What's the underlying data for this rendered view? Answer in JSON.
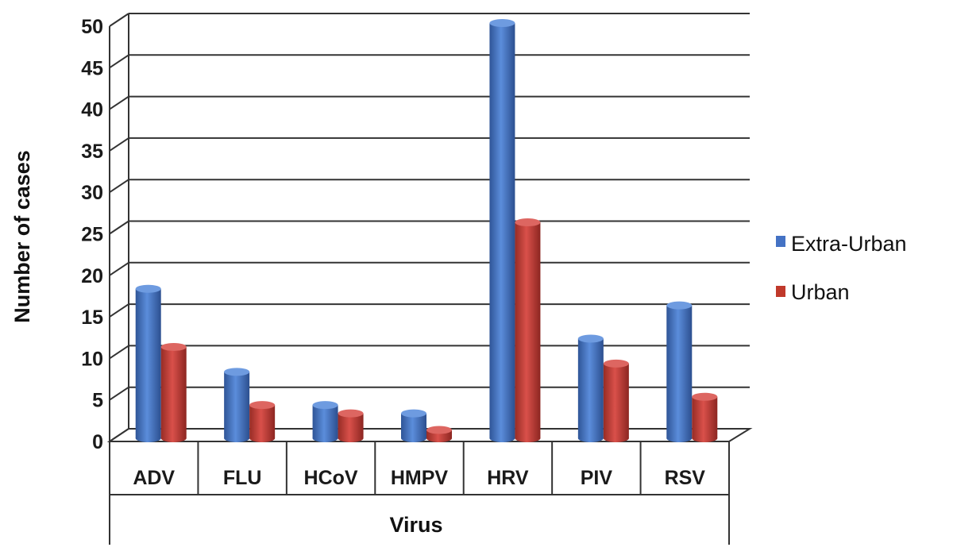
{
  "chart_data": {
    "type": "bar",
    "categories": [
      "ADV",
      "FLU",
      "HCoV",
      "HMPV",
      "HRV",
      "PIV",
      "RSV"
    ],
    "series": [
      {
        "name": "Extra-Urban",
        "values": [
          18,
          8,
          4,
          3,
          50,
          12,
          16
        ]
      },
      {
        "name": "Urban",
        "values": [
          11,
          4,
          3,
          1,
          26,
          9,
          5
        ]
      }
    ],
    "xlabel": "Virus",
    "ylabel": "Number of cases",
    "ylim": [
      0,
      50
    ],
    "yticks": [
      "0",
      "5",
      "10",
      "15",
      "20",
      "25",
      "30",
      "35",
      "40",
      "45",
      "50"
    ],
    "grid": true,
    "legend_position": "right",
    "colors": {
      "Extra-Urban": "#4472c4",
      "Urban": "#c0392b"
    }
  }
}
